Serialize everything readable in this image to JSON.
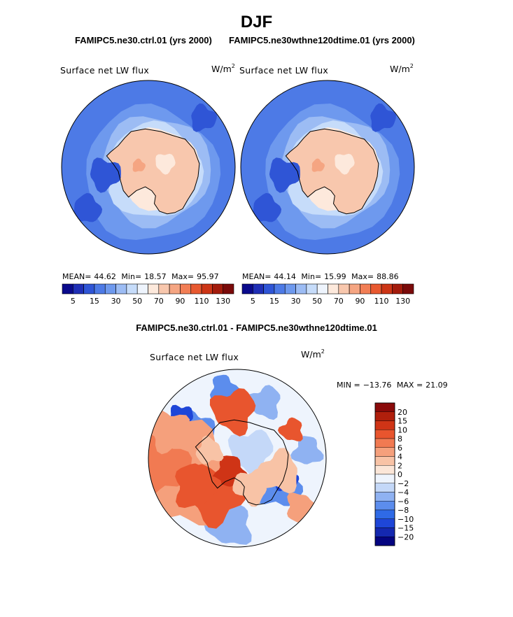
{
  "season_title": "DJF",
  "left_case": "FAMIPC5.ne30.ctrl.01 (yrs 2000)",
  "right_case": "FAMIPC5.ne30wthne120dtime.01 (yrs 2000)",
  "diff_title": "FAMIPC5.ne30.ctrl.01 - FAMIPC5.ne30wthne120dtime.01",
  "variable_label": "Surface net LW flux",
  "units_base": "W/m",
  "units_exp": "2",
  "colors": {
    "abs_scale": [
      "#0a0a8c",
      "#1f2fb6",
      "#2f55d6",
      "#4d7ae6",
      "#6e99ee",
      "#9cbcf4",
      "#c6dcfa",
      "#eef4fd",
      "#fde9dc",
      "#f8c7ad",
      "#f5a582",
      "#f27e55",
      "#e85930",
      "#cc3516",
      "#a31b0c",
      "#7a0a0a"
    ],
    "diff_scale": [
      "#040480",
      "#1428b0",
      "#1e46d8",
      "#2f6ae6",
      "#5c8ded",
      "#8fb2f2",
      "#c4d8f8",
      "#eef4fd",
      "#fbe6d8",
      "#f8c3a6",
      "#f5a07c",
      "#f17a52",
      "#e8552e",
      "#cf3416",
      "#b01f0c",
      "#8a0a0a"
    ],
    "land_outline": "#000000"
  },
  "chart_data": [
    {
      "type": "polar_map",
      "panel": "left",
      "case": "FAMIPC5.ne30.ctrl.01 (yrs 2000)",
      "variable": "Surface net LW flux",
      "units": "W/m2",
      "stats": {
        "mean_label": "MEAN=",
        "mean": "44.62",
        "min_label": "Min=",
        "min": "18.57",
        "max_label": "Max=",
        "max": "95.97"
      },
      "colorbar_levels": [
        5,
        10,
        15,
        20,
        25,
        30,
        40,
        50,
        60,
        70,
        80,
        90,
        100,
        110,
        120,
        130
      ],
      "colorbar_tick_labels": [
        "5",
        "15",
        "30",
        "50",
        "70",
        "90",
        "110",
        "130"
      ]
    },
    {
      "type": "polar_map",
      "panel": "right",
      "case": "FAMIPC5.ne30wthne120dtime.01 (yrs 2000)",
      "variable": "Surface net LW flux",
      "units": "W/m2",
      "stats": {
        "mean_label": "MEAN=",
        "mean": "44.14",
        "min_label": "Min=",
        "min": "15.99",
        "max_label": "Max=",
        "max": "88.86"
      },
      "colorbar_levels": [
        5,
        10,
        15,
        20,
        25,
        30,
        40,
        50,
        60,
        70,
        80,
        90,
        100,
        110,
        120,
        130
      ],
      "colorbar_tick_labels": [
        "5",
        "15",
        "30",
        "50",
        "70",
        "90",
        "110",
        "130"
      ]
    },
    {
      "type": "polar_map_difference",
      "panel": "difference",
      "case": "FAMIPC5.ne30.ctrl.01 - FAMIPC5.ne30wthne120dtime.01",
      "variable": "Surface net LW flux",
      "units": "W/m2",
      "stats": {
        "min_label": "MIN =",
        "min": "−13.76",
        "max_label": "MAX =",
        "max": "21.09"
      },
      "colorbar_levels": [
        -20,
        -15,
        -10,
        -8,
        -6,
        -4,
        -2,
        0,
        2,
        4,
        6,
        8,
        10,
        15,
        20
      ],
      "colorbar_tick_labels": [
        "20",
        "15",
        "10",
        "8",
        "6",
        "4",
        "2",
        "0",
        "−2",
        "−4",
        "−6",
        "−8",
        "−10",
        "−15",
        "−20"
      ]
    }
  ]
}
